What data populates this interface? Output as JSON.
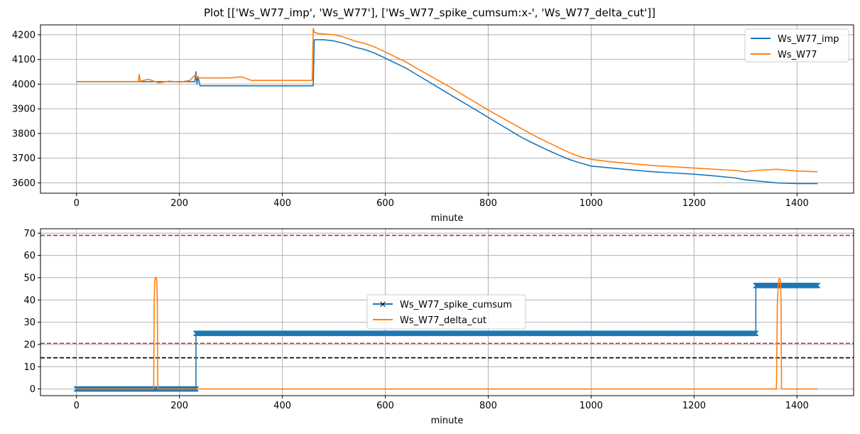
{
  "figure_title": "Plot [['Ws_W77_imp', 'Ws_W77'], ['Ws_W77_spike_cumsum:x-', 'Ws_W77_delta_cut']]",
  "colors": {
    "blue": "#1f77b4",
    "orange": "#ff7f0e",
    "red": "#d62728",
    "black": "#000000",
    "grid": "#b0b0b0"
  },
  "chart_data": [
    {
      "type": "line",
      "xlabel": "minute",
      "ylabel": "",
      "xlim": [
        -70,
        1510
      ],
      "ylim": [
        3558,
        4240
      ],
      "xticks": [
        0,
        200,
        400,
        600,
        800,
        1000,
        1200,
        1400
      ],
      "xtick_labels": [
        "0",
        "200",
        "400",
        "600",
        "800",
        "1000",
        "1200",
        "1400"
      ],
      "yticks": [
        3600,
        3700,
        3800,
        3900,
        4000,
        4100,
        4200
      ],
      "ytick_labels": [
        "3600",
        "3700",
        "3800",
        "3900",
        "4000",
        "4100",
        "4200"
      ],
      "grid": true,
      "legend": "top-right",
      "series": [
        {
          "name": "Ws_W77_imp",
          "color": "#1f77b4",
          "x": [
            0,
            230,
            232,
            234,
            236,
            240,
            460,
            462,
            480,
            500,
            520,
            540,
            560,
            580,
            600,
            620,
            640,
            660,
            680,
            700,
            720,
            740,
            760,
            780,
            800,
            820,
            840,
            860,
            880,
            900,
            920,
            940,
            960,
            980,
            1000,
            1040,
            1080,
            1120,
            1160,
            1200,
            1240,
            1280,
            1300,
            1320,
            1360,
            1400,
            1440
          ],
          "y": [
            4010,
            4010,
            4050,
            4000,
            4030,
            3993,
            3993,
            4180,
            4180,
            4175,
            4165,
            4150,
            4140,
            4125,
            4105,
            4085,
            4065,
            4040,
            4015,
            3990,
            3965,
            3940,
            3915,
            3890,
            3865,
            3840,
            3815,
            3790,
            3768,
            3748,
            3728,
            3710,
            3693,
            3680,
            3668,
            3660,
            3652,
            3645,
            3640,
            3635,
            3628,
            3620,
            3612,
            3608,
            3600,
            3597,
            3597
          ]
        },
        {
          "name": "Ws_W77",
          "color": "#ff7f0e",
          "x": [
            0,
            120,
            122,
            124,
            140,
            160,
            180,
            200,
            220,
            232,
            234,
            240,
            300,
            320,
            340,
            458,
            460,
            462,
            470,
            500,
            520,
            540,
            560,
            580,
            600,
            620,
            640,
            660,
            680,
            700,
            720,
            740,
            760,
            780,
            800,
            820,
            840,
            860,
            880,
            900,
            920,
            940,
            960,
            980,
            1000,
            1040,
            1080,
            1120,
            1160,
            1200,
            1240,
            1280,
            1300,
            1320,
            1360,
            1400,
            1440
          ],
          "y": [
            4010,
            4010,
            4040,
            4012,
            4020,
            4005,
            4012,
            4008,
            4015,
            4040,
            4025,
            4025,
            4025,
            4030,
            4015,
            4015,
            4225,
            4210,
            4205,
            4200,
            4190,
            4175,
            4165,
            4150,
            4130,
            4110,
            4090,
            4065,
            4042,
            4018,
            3995,
            3970,
            3945,
            3920,
            3895,
            3872,
            3848,
            3825,
            3802,
            3780,
            3760,
            3740,
            3720,
            3705,
            3695,
            3685,
            3677,
            3670,
            3665,
            3660,
            3655,
            3650,
            3645,
            3650,
            3655,
            3648,
            3645
          ]
        }
      ]
    },
    {
      "type": "line",
      "xlabel": "minute",
      "ylabel": "",
      "xlim": [
        -70,
        1510
      ],
      "ylim": [
        -3,
        72
      ],
      "xticks": [
        0,
        200,
        400,
        600,
        800,
        1000,
        1200,
        1400
      ],
      "xtick_labels": [
        "0",
        "200",
        "400",
        "600",
        "800",
        "1000",
        "1200",
        "1400"
      ],
      "yticks": [
        0,
        10,
        20,
        30,
        40,
        50,
        60,
        70
      ],
      "ytick_labels": [
        "0",
        "10",
        "20",
        "30",
        "40",
        "50",
        "60",
        "70"
      ],
      "grid": true,
      "legend": "center",
      "hlines": [
        {
          "y": 69,
          "color": "#d62728",
          "style": "dashed"
        },
        {
          "y": 20.5,
          "color": "#d62728",
          "style": "dashed"
        },
        {
          "y": 14,
          "color": "#000000",
          "style": "dashed"
        }
      ],
      "series": [
        {
          "name": "Ws_W77_spike_cumsum",
          "color": "#1f77b4",
          "marker": "x",
          "segments": [
            {
              "x_start": 0,
              "x_end": 232,
              "y": 0
            },
            {
              "x_start": 232,
              "x_end": 1320,
              "y": 25
            },
            {
              "x_start": 1320,
              "x_end": 1440,
              "y": 46.5
            }
          ]
        },
        {
          "name": "Ws_W77_delta_cut",
          "color": "#ff7f0e",
          "x": [
            0,
            150,
            151,
            152,
            153,
            155,
            156,
            157,
            158,
            159,
            1360,
            1362,
            1364,
            1365,
            1367,
            1368,
            1369,
            1370,
            1440
          ],
          "y": [
            0,
            0,
            40,
            48,
            50,
            50,
            48,
            40,
            0,
            0,
            0,
            40,
            48,
            49.5,
            49.5,
            48,
            40,
            0,
            0
          ]
        }
      ]
    }
  ]
}
